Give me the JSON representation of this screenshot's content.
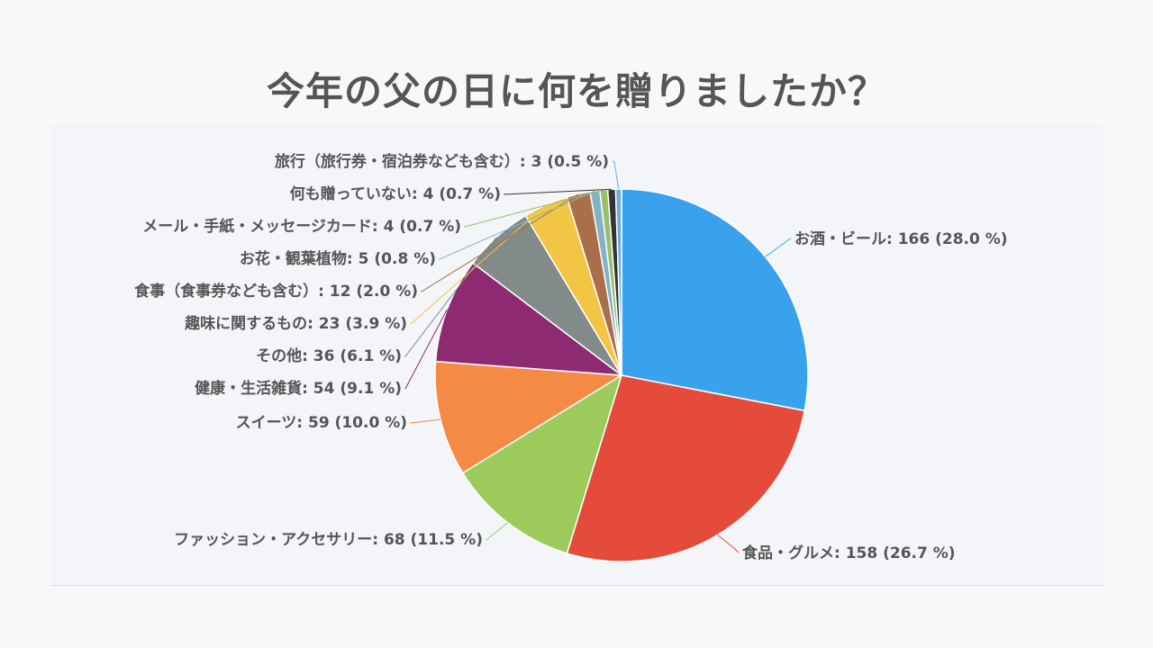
{
  "title": "今年の父の日に何を贈りましたか？",
  "chart_data": {
    "type": "pie",
    "title": "今年の父の日に何を贈りましたか？",
    "start": "top",
    "direction": "clockwise",
    "slices": [
      {
        "label": "お酒・ビール",
        "value": 166,
        "percent": "28.0 %",
        "color": "#3aa2ec",
        "text": "お酒・ビール: 166 (28.0 %)"
      },
      {
        "label": "食品・グルメ",
        "value": 158,
        "percent": "26.7 %",
        "color": "#e44b3a",
        "text": "食品・グルメ: 158 (26.7 %)"
      },
      {
        "label": "ファッション・アクセサリー",
        "value": 68,
        "percent": "11.5 %",
        "color": "#9ccb5b",
        "text": "ファッション・アクセサリー: 68 (11.5 %)"
      },
      {
        "label": "スイーツ",
        "value": 59,
        "percent": "10.0 %",
        "color": "#f58a44",
        "text": "スイーツ: 59 (10.0 %)"
      },
      {
        "label": "健康・生活雑貨",
        "value": 54,
        "percent": "9.1 %",
        "color": "#8e2a72",
        "text": "健康・生活雑貨: 54 (9.1 %)"
      },
      {
        "label": "その他",
        "value": 36,
        "percent": "6.1 %",
        "color": "#838a8a",
        "text": "その他: 36 (6.1 %)"
      },
      {
        "label": "趣味に関するもの",
        "value": 23,
        "percent": "3.9 %",
        "color": "#f2c545",
        "text": "趣味に関するもの: 23 (3.9 %)"
      },
      {
        "label": "食事（食事券なども含む）",
        "value": 12,
        "percent": "2.0 %",
        "color": "#ab6e4a",
        "text": "食事（食事券なども含む）: 12 (2.0 %)"
      },
      {
        "label": "お花・観葉植物",
        "value": 5,
        "percent": "0.8 %",
        "color": "#84b3c6",
        "text": "お花・観葉植物: 5 (0.8 %)"
      },
      {
        "label": "メール・手紙・メッセージカード",
        "value": 4,
        "percent": "0.7 %",
        "color": "#98c06a",
        "text": "メール・手紙・メッセージカード: 4 (0.7 %)"
      },
      {
        "label": "何も贈っていない",
        "value": 4,
        "percent": "0.7 %",
        "color": "#333333",
        "text": "何も贈っていない: 4 (0.7 %)"
      },
      {
        "label": "旅行（旅行券・宿泊券なども含む）",
        "value": 3,
        "percent": "0.5 %",
        "color": "#6aaee0",
        "text": "旅行（旅行券・宿泊券なども含む）: 3 (0.5 %)"
      }
    ]
  }
}
